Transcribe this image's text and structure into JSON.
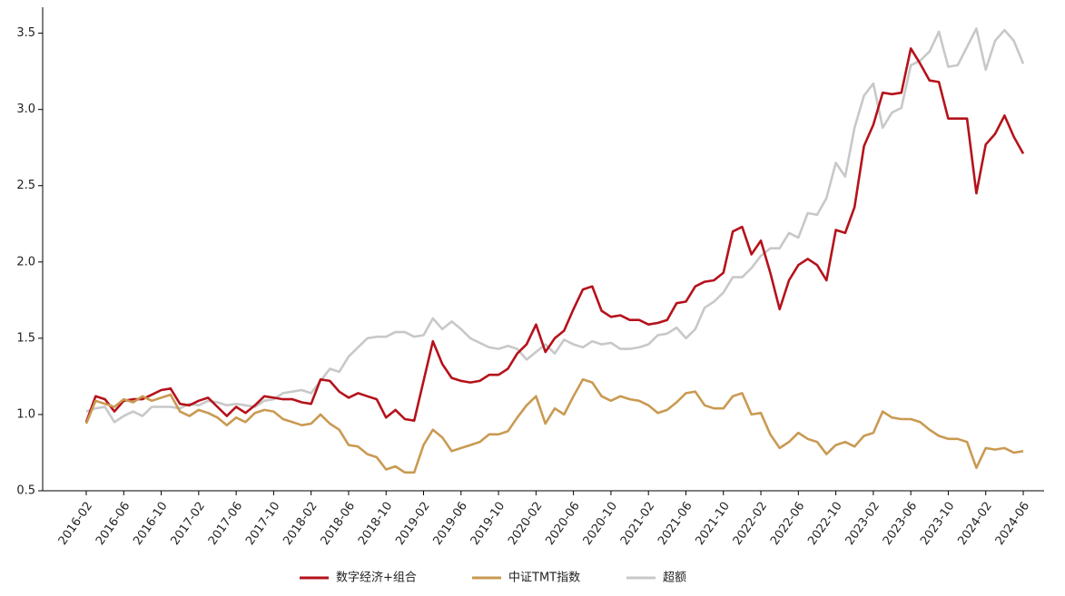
{
  "chart_data": {
    "type": "line",
    "categories": [
      "2016-02",
      null,
      null,
      null,
      "2016-06",
      null,
      null,
      null,
      "2016-10",
      null,
      null,
      null,
      "2017-02",
      null,
      null,
      null,
      "2017-06",
      null,
      null,
      null,
      "2017-10",
      null,
      null,
      null,
      "2018-02",
      null,
      null,
      null,
      "2018-06",
      null,
      null,
      null,
      "2018-10",
      null,
      null,
      null,
      "2019-02",
      null,
      null,
      null,
      "2019-06",
      null,
      null,
      null,
      "2019-10",
      null,
      null,
      null,
      "2020-02",
      null,
      null,
      null,
      "2020-06",
      null,
      null,
      null,
      "2020-10",
      null,
      null,
      null,
      "2021-02",
      null,
      null,
      null,
      "2021-06",
      null,
      null,
      null,
      "2021-10",
      null,
      null,
      null,
      "2022-02",
      null,
      null,
      null,
      "2022-06",
      null,
      null,
      null,
      "2022-10",
      null,
      null,
      null,
      "2023-02",
      null,
      null,
      null,
      "2023-06",
      null,
      null,
      null,
      "2023-10",
      null,
      null,
      null,
      "2024-02",
      null,
      null,
      null,
      "2024-06"
    ],
    "series": [
      {
        "name": "数字经济+组合",
        "color": "#b5121b",
        "values": [
          0.95,
          1.12,
          1.1,
          1.02,
          1.09,
          1.1,
          1.1,
          1.13,
          1.16,
          1.17,
          1.07,
          1.06,
          1.09,
          1.11,
          1.05,
          0.99,
          1.05,
          1.01,
          1.06,
          1.12,
          1.11,
          1.1,
          1.1,
          1.08,
          1.07,
          1.23,
          1.22,
          1.15,
          1.11,
          1.14,
          1.12,
          1.1,
          0.98,
          1.03,
          0.97,
          0.96,
          1.22,
          1.48,
          1.33,
          1.24,
          1.22,
          1.21,
          1.22,
          1.26,
          1.26,
          1.3,
          1.4,
          1.46,
          1.59,
          1.41,
          1.5,
          1.55,
          1.69,
          1.82,
          1.84,
          1.68,
          1.64,
          1.65,
          1.62,
          1.62,
          1.59,
          1.6,
          1.62,
          1.73,
          1.74,
          1.84,
          1.87,
          1.88,
          1.93,
          2.2,
          2.23,
          2.05,
          2.14,
          1.93,
          1.69,
          1.88,
          1.98,
          2.02,
          1.98,
          1.88,
          2.21,
          2.19,
          2.36,
          2.76,
          2.9,
          3.11,
          3.1,
          3.11,
          3.4,
          3.3,
          3.19,
          3.18,
          2.94,
          2.94,
          2.94,
          2.45,
          2.77,
          2.84,
          2.96,
          2.82,
          2.71
        ]
      },
      {
        "name": "中证TMT指数",
        "color": "#c99a52",
        "values": [
          0.94,
          1.09,
          1.07,
          1.05,
          1.1,
          1.08,
          1.12,
          1.09,
          1.11,
          1.13,
          1.02,
          0.99,
          1.03,
          1.01,
          0.98,
          0.93,
          0.98,
          0.95,
          1.01,
          1.03,
          1.02,
          0.97,
          0.95,
          0.93,
          0.94,
          1.0,
          0.94,
          0.9,
          0.8,
          0.79,
          0.74,
          0.72,
          0.64,
          0.66,
          0.62,
          0.62,
          0.8,
          0.9,
          0.85,
          0.76,
          0.78,
          0.8,
          0.82,
          0.87,
          0.87,
          0.89,
          0.98,
          1.06,
          1.12,
          0.94,
          1.04,
          1.0,
          1.12,
          1.23,
          1.21,
          1.12,
          1.09,
          1.12,
          1.1,
          1.09,
          1.06,
          1.01,
          1.03,
          1.08,
          1.14,
          1.15,
          1.06,
          1.04,
          1.04,
          1.12,
          1.14,
          1.0,
          1.01,
          0.87,
          0.78,
          0.82,
          0.88,
          0.84,
          0.82,
          0.74,
          0.8,
          0.82,
          0.79,
          0.86,
          0.88,
          1.02,
          0.98,
          0.97,
          0.97,
          0.95,
          0.9,
          0.86,
          0.84,
          0.84,
          0.82,
          0.65,
          0.78,
          0.77,
          0.78,
          0.75,
          0.76
        ]
      },
      {
        "name": "超额",
        "color": "#c8c8c8",
        "values": [
          1.02,
          1.04,
          1.05,
          0.95,
          0.99,
          1.02,
          0.99,
          1.05,
          1.05,
          1.05,
          1.04,
          1.07,
          1.06,
          1.09,
          1.08,
          1.06,
          1.07,
          1.06,
          1.05,
          1.09,
          1.1,
          1.14,
          1.15,
          1.16,
          1.14,
          1.22,
          1.3,
          1.28,
          1.38,
          1.44,
          1.5,
          1.51,
          1.51,
          1.54,
          1.54,
          1.51,
          1.52,
          1.63,
          1.56,
          1.61,
          1.56,
          1.5,
          1.47,
          1.44,
          1.43,
          1.45,
          1.43,
          1.36,
          1.41,
          1.46,
          1.4,
          1.49,
          1.46,
          1.44,
          1.48,
          1.46,
          1.47,
          1.43,
          1.43,
          1.44,
          1.46,
          1.52,
          1.53,
          1.57,
          1.5,
          1.56,
          1.7,
          1.74,
          1.8,
          1.9,
          1.9,
          1.96,
          2.04,
          2.09,
          2.09,
          2.19,
          2.16,
          2.32,
          2.31,
          2.42,
          2.65,
          2.56,
          2.88,
          3.09,
          3.17,
          2.88,
          2.98,
          3.01,
          3.29,
          3.32,
          3.38,
          3.51,
          3.28,
          3.29,
          3.41,
          3.53,
          3.26,
          3.45,
          3.52,
          3.45,
          3.3
        ]
      }
    ],
    "ylim": [
      0.5,
      3.67
    ],
    "yticks": [
      0.5,
      {
        "value": 1,
        "label": "1.0"
      },
      1.5,
      {
        "value": 2,
        "label": "2.0"
      },
      2.5,
      {
        "value": 3,
        "label": "3.0"
      },
      3.5
    ],
    "legend": "bottom"
  }
}
